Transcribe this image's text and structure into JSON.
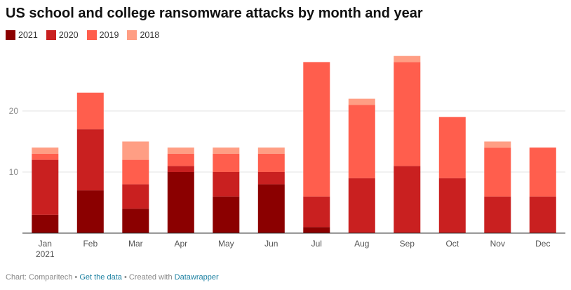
{
  "header": {
    "title": "US school and college ransomware attacks by month and year"
  },
  "legend": [
    {
      "label": "2021",
      "color": "#8b0000"
    },
    {
      "label": "2020",
      "color": "#c92020"
    },
    {
      "label": "2019",
      "color": "#ff5e4d"
    },
    {
      "label": "2018",
      "color": "#ff9e84"
    }
  ],
  "footer": {
    "source_text": "Chart: Comparitech",
    "separator_1": " • ",
    "data_link": "Get the data",
    "separator_2": " • Created with ",
    "tool_link": "Datawrapper"
  },
  "chart_data": {
    "type": "bar",
    "stacked": true,
    "title": "US school and college ransomware attacks by month and year",
    "categories": [
      "Jan",
      "Feb",
      "Mar",
      "Apr",
      "May",
      "Jun",
      "Jul",
      "Aug",
      "Sep",
      "Oct",
      "Nov",
      "Dec"
    ],
    "first_category_sublabel": "2021",
    "series": [
      {
        "name": "2021",
        "color": "#8b0000",
        "values": [
          3,
          7,
          4,
          10,
          6,
          8,
          1,
          0,
          0,
          0,
          0,
          0
        ]
      },
      {
        "name": "2020",
        "color": "#c92020",
        "values": [
          9,
          10,
          4,
          1,
          4,
          2,
          5,
          9,
          11,
          9,
          6,
          6
        ]
      },
      {
        "name": "2019",
        "color": "#ff5e4d",
        "values": [
          1,
          6,
          4,
          2,
          3,
          3,
          22,
          12,
          17,
          10,
          8,
          8
        ]
      },
      {
        "name": "2018",
        "color": "#ff9e84",
        "values": [
          1,
          0,
          3,
          1,
          1,
          1,
          0,
          1,
          1,
          0,
          1,
          0
        ]
      }
    ],
    "y_ticks": [
      10,
      20
    ],
    "ylim": [
      0,
      30
    ],
    "grid": true,
    "legend_position": "top-left",
    "xlabel": "",
    "ylabel": ""
  }
}
